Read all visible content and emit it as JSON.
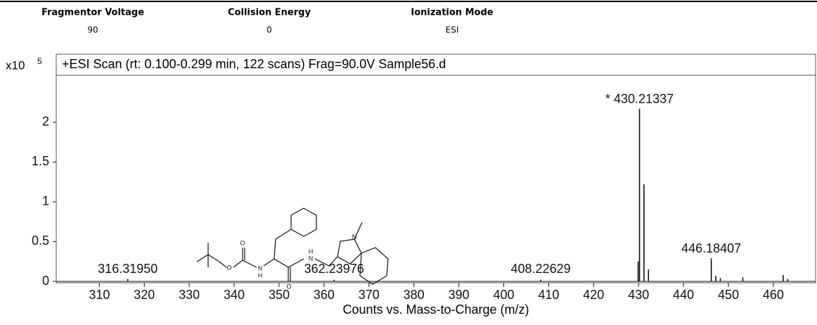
{
  "header": {
    "fields": [
      {
        "label": "Fragmentor Voltage",
        "value": "90"
      },
      {
        "label": "Collision Energy",
        "value": "0"
      },
      {
        "label": "Ionization Mode",
        "value": "ESI"
      }
    ]
  },
  "chart_data": {
    "type": "spectrum",
    "title": "+ESI Scan (rt: 0.100-0.299 min, 122 scans) Frag=90.0V Sample56.d",
    "y_multiplier": {
      "base": "x10",
      "exponent": "5"
    },
    "x_axis_label": "Counts vs. Mass-to-Charge (m/z)",
    "x": [
      316.3195,
      362.23976,
      408.22629,
      429.9,
      430.21337,
      431.2,
      432.2,
      446.18407,
      447.2,
      448.2,
      453.2,
      462.2,
      463.2
    ],
    "values": [
      0.03,
      0.02,
      0.02,
      0.25,
      2.17,
      1.22,
      0.15,
      0.29,
      0.07,
      0.04,
      0.05,
      0.08,
      0.03
    ],
    "x_labels": [
      "316.31950",
      "362.23976",
      "408.22629",
      null,
      "* 430.21337",
      null,
      null,
      "446.18407",
      null,
      null,
      null,
      null,
      null
    ],
    "color": "#000000",
    "xlim": [
      300.4,
      469.4
    ],
    "xticks": [
      310,
      320,
      330,
      340,
      350,
      360,
      370,
      380,
      390,
      400,
      410,
      420,
      430,
      440,
      450,
      460
    ],
    "ylim": [
      0,
      2.6
    ],
    "yticks": [
      0,
      0.5,
      1,
      1.5,
      2
    ]
  },
  "structure": {
    "atoms": [
      "O",
      "O",
      "N",
      "H",
      "N",
      "H",
      "O",
      "N"
    ]
  }
}
